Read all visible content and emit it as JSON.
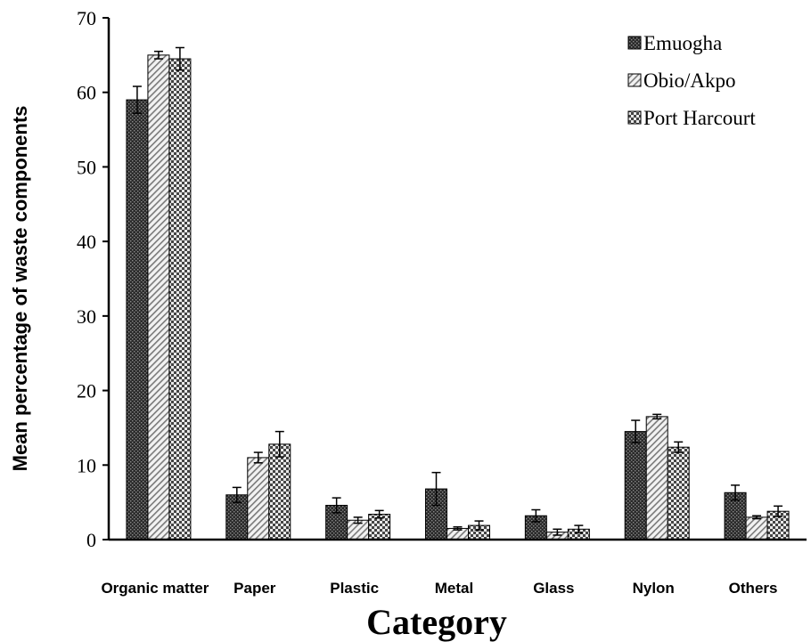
{
  "chart_data": {
    "type": "bar",
    "categories": [
      "Organic matter",
      "Paper",
      "Plastic",
      "Metal",
      "Glass",
      "Nylon",
      "Others"
    ],
    "series": [
      {
        "name": "Emuogha",
        "values": [
          59,
          6,
          4.6,
          6.8,
          3.2,
          14.5,
          6.3
        ],
        "errors": [
          1.8,
          1.0,
          1.0,
          2.2,
          0.8,
          1.5,
          1.0
        ],
        "pattern": "crosshatch-dark"
      },
      {
        "name": "Obio/Akpo",
        "values": [
          65,
          11,
          2.6,
          1.5,
          1.0,
          16.5,
          3.0
        ],
        "errors": [
          0.5,
          0.7,
          0.4,
          0.2,
          0.4,
          0.3,
          0.2
        ],
        "pattern": "diagonal-light"
      },
      {
        "name": "Port Harcourt",
        "values": [
          64.5,
          12.8,
          3.4,
          1.9,
          1.4,
          12.4,
          3.8
        ],
        "errors": [
          1.5,
          1.7,
          0.5,
          0.6,
          0.5,
          0.7,
          0.7
        ],
        "pattern": "checker-medium"
      }
    ],
    "title": "",
    "xlabel": "Category",
    "ylabel": "Mean percentage  of waste components",
    "ylim": [
      0,
      70
    ],
    "yticks": [
      "0",
      "10",
      "20",
      "30",
      "40",
      "50",
      "60",
      "70"
    ],
    "grid": false,
    "legend_position": "top-right"
  }
}
